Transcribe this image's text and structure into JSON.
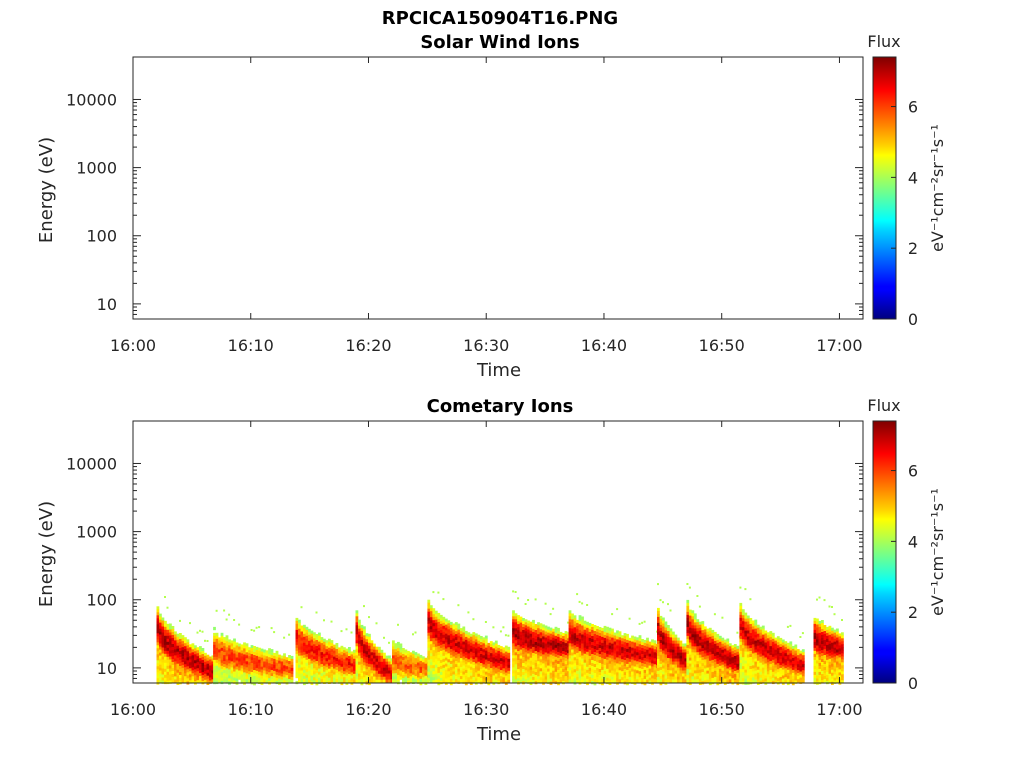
{
  "figure": {
    "title": "RPCICA150904T16.PNG"
  },
  "chart_data": [
    {
      "type": "heatmap",
      "title": "Solar Wind Ions",
      "xlabel": "Time",
      "ylabel": "Energy (eV)",
      "x_ticks": [
        "16:00",
        "16:10",
        "16:20",
        "16:30",
        "16:40",
        "16:50",
        "17:00"
      ],
      "xlim_minutes": [
        0,
        62
      ],
      "y_scale": "log",
      "y_ticks": [
        "10",
        "100",
        "1000",
        "10000"
      ],
      "y_tick_values": [
        10,
        100,
        1000,
        10000
      ],
      "ylim": [
        6,
        42000
      ],
      "colorbar": {
        "title": "Flux",
        "label": "eV⁻¹cm⁻²sr⁻¹s⁻¹",
        "ticks": [
          "0",
          "2",
          "4",
          "6"
        ],
        "tick_values": [
          0,
          2,
          4,
          6
        ],
        "range": [
          0,
          7.4
        ],
        "colormap": "jet"
      },
      "bursts": []
    },
    {
      "type": "heatmap",
      "title": "Cometary Ions",
      "xlabel": "Time",
      "ylabel": "Energy (eV)",
      "x_ticks": [
        "16:00",
        "16:10",
        "16:20",
        "16:30",
        "16:40",
        "16:50",
        "17:00"
      ],
      "xlim_minutes": [
        0,
        62
      ],
      "y_scale": "log",
      "y_ticks": [
        "10",
        "100",
        "1000",
        "10000"
      ],
      "y_tick_values": [
        10,
        100,
        1000,
        10000
      ],
      "ylim": [
        6,
        42000
      ],
      "colorbar": {
        "title": "Flux",
        "label": "eV⁻¹cm⁻²sr⁻¹s⁻¹",
        "ticks": [
          "0",
          "2",
          "4",
          "6"
        ],
        "tick_values": [
          0,
          2,
          4,
          6
        ],
        "range": [
          0,
          7.4
        ],
        "colormap": "jet"
      },
      "bursts": [
        {
          "start_min": 2.0,
          "end_min": 6.8,
          "start_energy_eV": 40,
          "end_energy_eV": 9,
          "peak_flux": 7.0
        },
        {
          "start_min": 6.8,
          "end_min": 13.5,
          "start_energy_eV": 20,
          "end_energy_eV": 10,
          "peak_flux": 6.0
        },
        {
          "start_min": 13.8,
          "end_min": 18.8,
          "start_energy_eV": 30,
          "end_energy_eV": 11,
          "peak_flux": 6.4
        },
        {
          "start_min": 18.9,
          "end_min": 22.0,
          "start_energy_eV": 35,
          "end_energy_eV": 8,
          "peak_flux": 6.8
        },
        {
          "start_min": 22.0,
          "end_min": 25.0,
          "start_energy_eV": 14,
          "end_energy_eV": 10,
          "peak_flux": 5.8
        },
        {
          "start_min": 25.0,
          "end_min": 32.0,
          "start_energy_eV": 50,
          "end_energy_eV": 12,
          "peak_flux": 6.8
        },
        {
          "start_min": 32.2,
          "end_min": 37.0,
          "start_energy_eV": 35,
          "end_energy_eV": 20,
          "peak_flux": 7.0
        },
        {
          "start_min": 37.0,
          "end_min": 44.5,
          "start_energy_eV": 35,
          "end_energy_eV": 15,
          "peak_flux": 6.8
        },
        {
          "start_min": 44.5,
          "end_min": 47.0,
          "start_energy_eV": 38,
          "end_energy_eV": 13,
          "peak_flux": 7.0
        },
        {
          "start_min": 47.0,
          "end_min": 51.5,
          "start_energy_eV": 45,
          "end_energy_eV": 12,
          "peak_flux": 7.0
        },
        {
          "start_min": 51.5,
          "end_min": 57.0,
          "start_energy_eV": 45,
          "end_energy_eV": 11,
          "peak_flux": 6.8
        },
        {
          "start_min": 57.8,
          "end_min": 60.2,
          "start_energy_eV": 30,
          "end_energy_eV": 20,
          "peak_flux": 7.0
        }
      ]
    }
  ]
}
